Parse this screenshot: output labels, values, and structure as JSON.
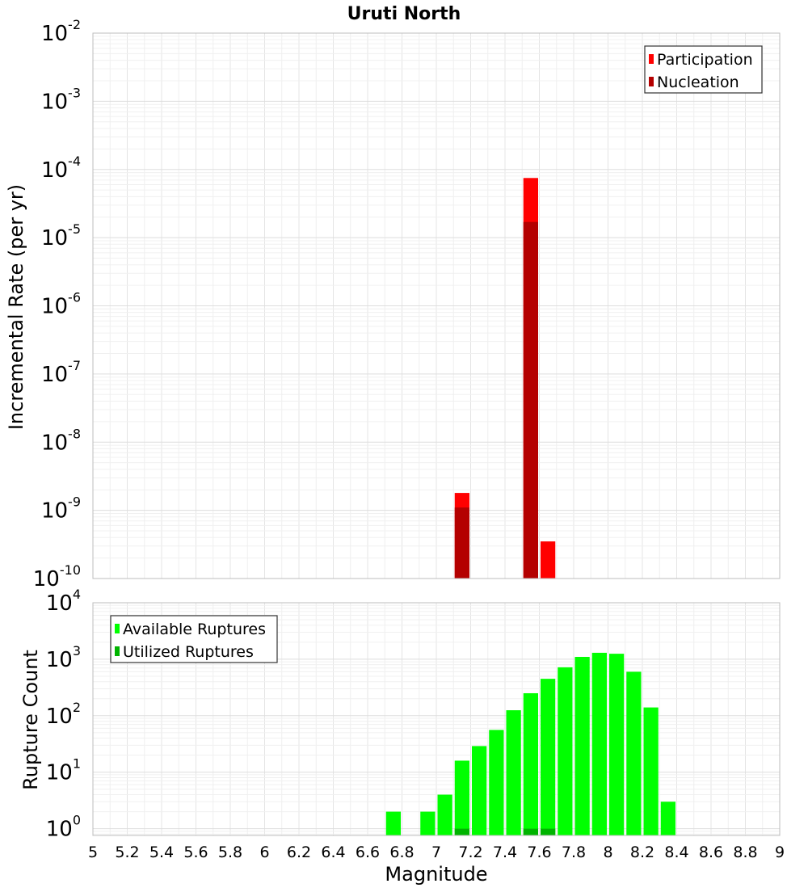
{
  "chart_data": {
    "type": "bar",
    "title": "Uruti North",
    "xlabel": "Magnitude",
    "xlim": [
      5,
      9
    ],
    "bin_width": 0.1,
    "x_ticks": [
      "5",
      "5.2",
      "5.4",
      "5.6",
      "5.8",
      "6",
      "6.2",
      "6.4",
      "6.6",
      "6.8",
      "7",
      "7.2",
      "7.4",
      "7.6",
      "7.8",
      "8",
      "8.2",
      "8.4",
      "8.6",
      "8.8",
      "9"
    ],
    "panels": [
      {
        "ylabel": "Incremental Rate (per yr)",
        "yscale": "log",
        "ylim_exp": [
          -10,
          -2
        ],
        "y_ticks": [
          {
            "base": "10",
            "exp": "-2"
          },
          {
            "base": "10",
            "exp": "-3"
          },
          {
            "base": "10",
            "exp": "-4"
          },
          {
            "base": "10",
            "exp": "-5"
          },
          {
            "base": "10",
            "exp": "-6"
          },
          {
            "base": "10",
            "exp": "-7"
          },
          {
            "base": "10",
            "exp": "-8"
          },
          {
            "base": "10",
            "exp": "-9"
          },
          {
            "base": "10",
            "exp": "-10"
          }
        ],
        "legend": {
          "position": "top-right",
          "entries": [
            {
              "name": "Participation",
              "color": "#ff0000"
            },
            {
              "name": "Nucleation",
              "color": "#b40000"
            }
          ]
        },
        "series": [
          {
            "name": "Participation",
            "color": "#ff0000",
            "x": [
              7.15,
              7.55,
              7.65
            ],
            "values": [
              1.8e-09,
              7.5e-05,
              3.5e-10
            ]
          },
          {
            "name": "Nucleation",
            "color": "#b40000",
            "x": [
              7.15,
              7.55
            ],
            "values": [
              1.1e-09,
              1.7e-05
            ]
          }
        ]
      },
      {
        "ylabel": "Rupture Count",
        "yscale": "log",
        "ylim_exp": [
          -0.12,
          4
        ],
        "y_ticks": [
          {
            "base": "10",
            "exp": "4"
          },
          {
            "base": "10",
            "exp": "3"
          },
          {
            "base": "10",
            "exp": "2"
          },
          {
            "base": "10",
            "exp": "1"
          },
          {
            "base": "10",
            "exp": "0"
          }
        ],
        "legend": {
          "position": "top-left",
          "entries": [
            {
              "name": "Available Ruptures",
              "color": "#00ff00"
            },
            {
              "name": "Utilized Ruptures",
              "color": "#00b400"
            }
          ]
        },
        "series": [
          {
            "name": "Available Ruptures",
            "color": "#00ff00",
            "x": [
              6.75,
              6.95,
              7.05,
              7.15,
              7.25,
              7.35,
              7.45,
              7.55,
              7.65,
              7.75,
              7.85,
              7.95,
              8.05,
              8.15,
              8.25,
              8.35
            ],
            "values": [
              2,
              2,
              4,
              16,
              29,
              56,
              125,
              250,
              450,
              720,
              1100,
              1300,
              1250,
              600,
              140,
              3
            ]
          },
          {
            "name": "Utilized Ruptures",
            "color": "#00b400",
            "x": [
              7.15,
              7.55,
              7.65
            ],
            "values": [
              1,
              1,
              1
            ]
          }
        ]
      }
    ]
  }
}
